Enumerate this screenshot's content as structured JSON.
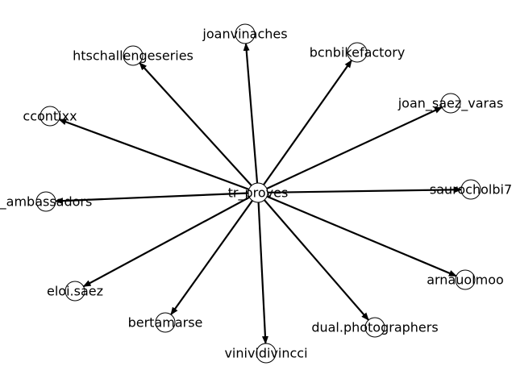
{
  "graph": {
    "center": {
      "id": "tr_proves",
      "label": "tr_proves"
    },
    "nodes": [
      {
        "id": "joanvinaches",
        "label": "joanvinaches"
      },
      {
        "id": "htschallengeseries",
        "label": "htschallengeseries"
      },
      {
        "id": "bcnbikefactory",
        "label": "bcnbikefactory"
      },
      {
        "id": "ccontixx",
        "label": "ccontixx"
      },
      {
        "id": "joan_saez_varas",
        "label": "joan_saez_varas"
      },
      {
        "id": "ambassadors",
        "label": "_ambassadors"
      },
      {
        "id": "saurocholbi7",
        "label": "saurocholbi7"
      },
      {
        "id": "eloi.saez",
        "label": "eloi.saez"
      },
      {
        "id": "arnauolmoo",
        "label": "arnauolmoo"
      },
      {
        "id": "bertamarse",
        "label": "bertamarse"
      },
      {
        "id": "dual.photographers",
        "label": "dual.photographers"
      },
      {
        "id": "vinividivincci",
        "label": "vinividivincci"
      }
    ],
    "edges": [
      {
        "from": "tr_proves",
        "to": "joanvinaches"
      },
      {
        "from": "tr_proves",
        "to": "htschallengeseries"
      },
      {
        "from": "tr_proves",
        "to": "bcnbikefactory"
      },
      {
        "from": "tr_proves",
        "to": "ccontixx"
      },
      {
        "from": "tr_proves",
        "to": "joan_saez_varas"
      },
      {
        "from": "tr_proves",
        "to": "ambassadors"
      },
      {
        "from": "tr_proves",
        "to": "saurocholbi7"
      },
      {
        "from": "tr_proves",
        "to": "eloi.saez"
      },
      {
        "from": "tr_proves",
        "to": "arnauolmoo"
      },
      {
        "from": "tr_proves",
        "to": "bertamarse"
      },
      {
        "from": "tr_proves",
        "to": "dual.photographers"
      },
      {
        "from": "tr_proves",
        "to": "vinividivincci"
      }
    ],
    "directed": true,
    "edge_color": "#000000",
    "node_fill": "#ffffff"
  }
}
